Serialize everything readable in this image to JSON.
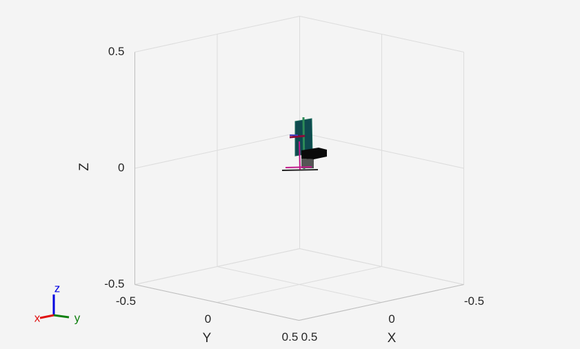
{
  "axes": {
    "x_label": "X",
    "y_label": "Y",
    "z_label": "Z",
    "x_ticks": [
      -0.5,
      0,
      0.5
    ],
    "y_ticks": [
      -0.5,
      0,
      0.5
    ],
    "z_ticks": [
      -0.5,
      0,
      0.5
    ]
  },
  "triad": {
    "x": "x",
    "y": "y",
    "z": "z"
  }
}
